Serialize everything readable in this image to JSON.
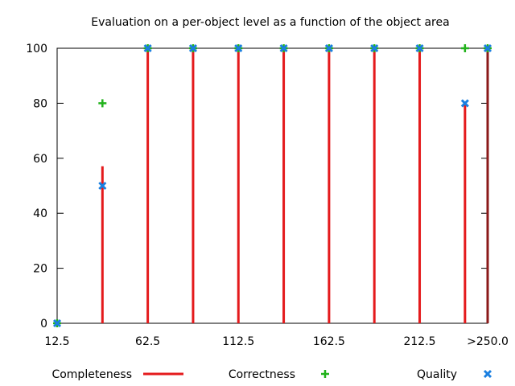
{
  "chart_data": {
    "type": "bar",
    "title": "Evaluation on a per-object level as a function of the object area",
    "xlabel": "",
    "ylabel": "",
    "x_tick_labels": [
      {
        "x": 12.5,
        "label": "12.5"
      },
      {
        "x": 62.5,
        "label": "62.5"
      },
      {
        "x": 112.5,
        "label": "112.5"
      },
      {
        "x": 162.5,
        "label": "162.5"
      },
      {
        "x": 212.5,
        "label": "212.5"
      },
      {
        "x": 250,
        "label": ">250.0"
      }
    ],
    "xlim": [
      12.5,
      250
    ],
    "ylim": [
      0,
      100
    ],
    "y_ticks": [
      0,
      20,
      40,
      60,
      80,
      100
    ],
    "grid": false,
    "legend_position": "bottom",
    "series": [
      {
        "name": "Completeness",
        "style": "impulses",
        "color": "#e41a1c",
        "points": [
          {
            "x": 12.5,
            "y": 0
          },
          {
            "x": 37.5,
            "y": 57.1
          },
          {
            "x": 62.5,
            "y": 100
          },
          {
            "x": 87.5,
            "y": 100
          },
          {
            "x": 112.5,
            "y": 100
          },
          {
            "x": 137.5,
            "y": 100
          },
          {
            "x": 162.5,
            "y": 100
          },
          {
            "x": 187.5,
            "y": 100
          },
          {
            "x": 212.5,
            "y": 100
          },
          {
            "x": 237.5,
            "y": 80
          },
          {
            "x": 250,
            "y": 100
          }
        ]
      },
      {
        "name": "Correctness",
        "style": "plus",
        "color": "#22b21c",
        "points": [
          {
            "x": 12.5,
            "y": 0
          },
          {
            "x": 37.5,
            "y": 80
          },
          {
            "x": 62.5,
            "y": 100
          },
          {
            "x": 87.5,
            "y": 100
          },
          {
            "x": 112.5,
            "y": 100
          },
          {
            "x": 137.5,
            "y": 100
          },
          {
            "x": 162.5,
            "y": 100
          },
          {
            "x": 187.5,
            "y": 100
          },
          {
            "x": 212.5,
            "y": 100
          },
          {
            "x": 237.5,
            "y": 100
          },
          {
            "x": 250,
            "y": 100
          }
        ]
      },
      {
        "name": "Quality",
        "style": "cross",
        "color": "#1a7fe0",
        "points": [
          {
            "x": 12.5,
            "y": 0
          },
          {
            "x": 37.5,
            "y": 50
          },
          {
            "x": 62.5,
            "y": 100
          },
          {
            "x": 87.5,
            "y": 100
          },
          {
            "x": 112.5,
            "y": 100
          },
          {
            "x": 137.5,
            "y": 100
          },
          {
            "x": 162.5,
            "y": 100
          },
          {
            "x": 187.5,
            "y": 100
          },
          {
            "x": 212.5,
            "y": 100
          },
          {
            "x": 237.5,
            "y": 80
          },
          {
            "x": 250,
            "y": 100
          }
        ]
      }
    ]
  }
}
